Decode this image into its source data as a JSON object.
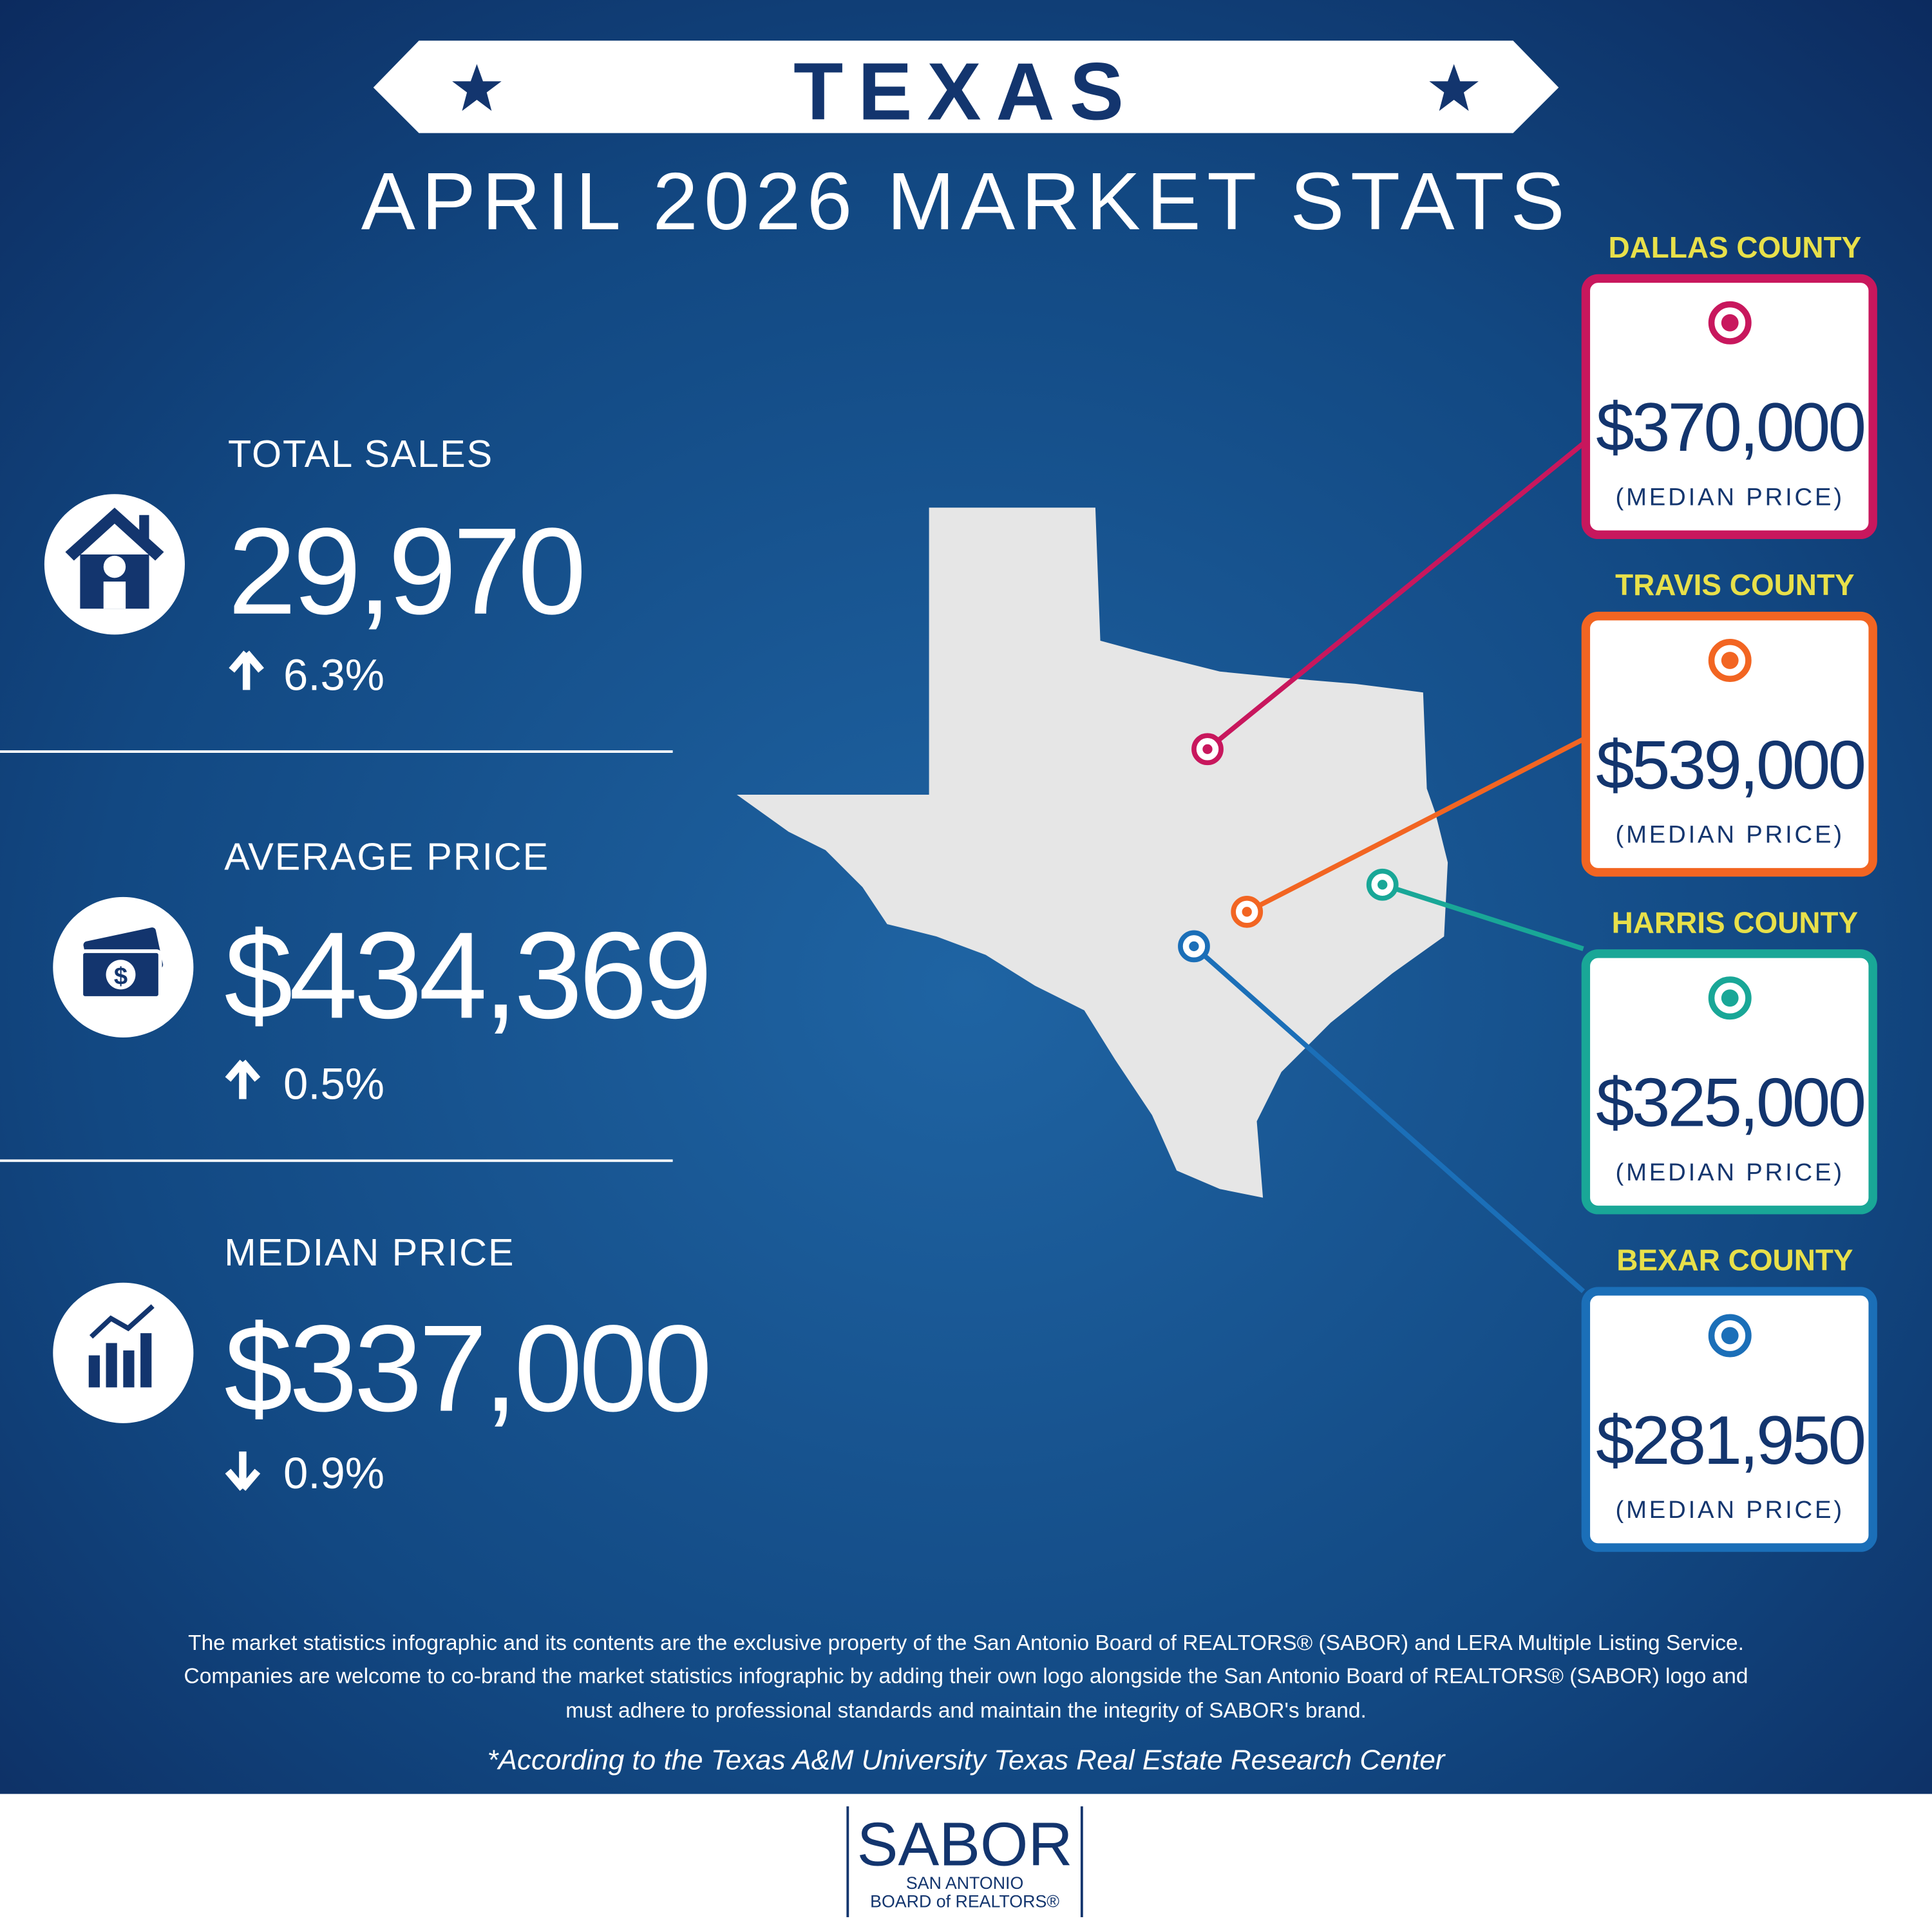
{
  "header": {
    "title": "TEXAS",
    "subtitle": "APRIL 2026 MARKET STATS"
  },
  "stats": [
    {
      "label": "TOTAL SALES",
      "value": "29,970",
      "change": "6.3%"
    },
    {
      "label": "AVERAGE PRICE",
      "value": "$434,369",
      "change": "0.5%"
    },
    {
      "label": "MEDIAN PRICE",
      "value": "$337,000",
      "change": "0.9%"
    }
  ],
  "counties": [
    {
      "name": "DALLAS COUNTY",
      "value": "$370,000",
      "note": "(MEDIAN PRICE)",
      "color": "#c8175d"
    },
    {
      "name": "TRAVIS COUNTY",
      "value": "$539,000",
      "note": "(MEDIAN PRICE)",
      "color": "#f26522"
    },
    {
      "name": "HARRIS COUNTY",
      "value": "$325,000",
      "note": "(MEDIAN PRICE)",
      "color": "#19a797"
    },
    {
      "name": "BEXAR COUNTY",
      "value": "$281,950",
      "note": "(MEDIAN PRICE)",
      "color": "#1b6fb8"
    }
  ],
  "footer": {
    "disclaimer": [
      "The market statistics infographic and its contents are the exclusive property of the San Antonio Board of REALTORS® (SABOR) and LERA Multiple Listing Service.",
      "Companies are welcome to co-brand the market statistics infographic by adding their own logo alongside the San Antonio Board of REALTORS® (SABOR) logo and",
      "must adhere to professional standards and maintain the integrity of SABOR's brand."
    ],
    "source": "*According to the Texas A&M University Texas Real Estate Research Center"
  },
  "logo": {
    "name": "SABOR",
    "line1": "SAN ANTONIO",
    "line2": "BOARD of REALTORS®"
  }
}
